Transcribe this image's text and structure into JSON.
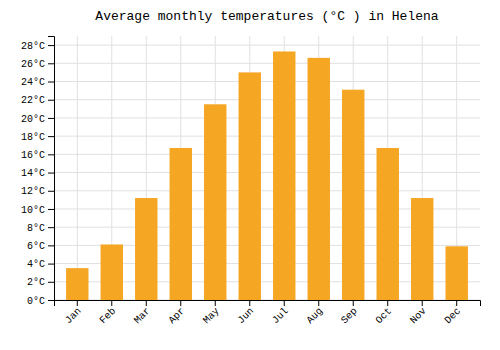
{
  "chart_data": {
    "type": "bar",
    "title": "Average monthly temperatures (°C ) in Helena",
    "categories": [
      "Jan",
      "Feb",
      "Mar",
      "Apr",
      "May",
      "Jun",
      "Jul",
      "Aug",
      "Sep",
      "Oct",
      "Nov",
      "Dec"
    ],
    "values": [
      3.5,
      6.1,
      11.2,
      16.7,
      21.5,
      25.0,
      27.3,
      26.6,
      23.1,
      16.7,
      11.2,
      5.9
    ],
    "color": "#F5A623",
    "ylim": [
      0,
      29
    ],
    "yticks": [
      {
        "value": 0,
        "label": "0°C"
      },
      {
        "value": 2,
        "label": "2°C"
      },
      {
        "value": 4,
        "label": "4°C"
      },
      {
        "value": 6,
        "label": "6°C"
      },
      {
        "value": 8,
        "label": "8°C"
      },
      {
        "value": 10,
        "label": "10°C"
      },
      {
        "value": 12,
        "label": "12°C"
      },
      {
        "value": 14,
        "label": "14°C"
      },
      {
        "value": 16,
        "label": "16°C"
      },
      {
        "value": 18,
        "label": "18°C"
      },
      {
        "value": 20,
        "label": "20°C"
      },
      {
        "value": 22,
        "label": "22°C"
      },
      {
        "value": 24,
        "label": "24°C"
      },
      {
        "value": 26,
        "label": "26°C"
      },
      {
        "value": 28,
        "label": "28°C"
      }
    ],
    "grid": true
  }
}
